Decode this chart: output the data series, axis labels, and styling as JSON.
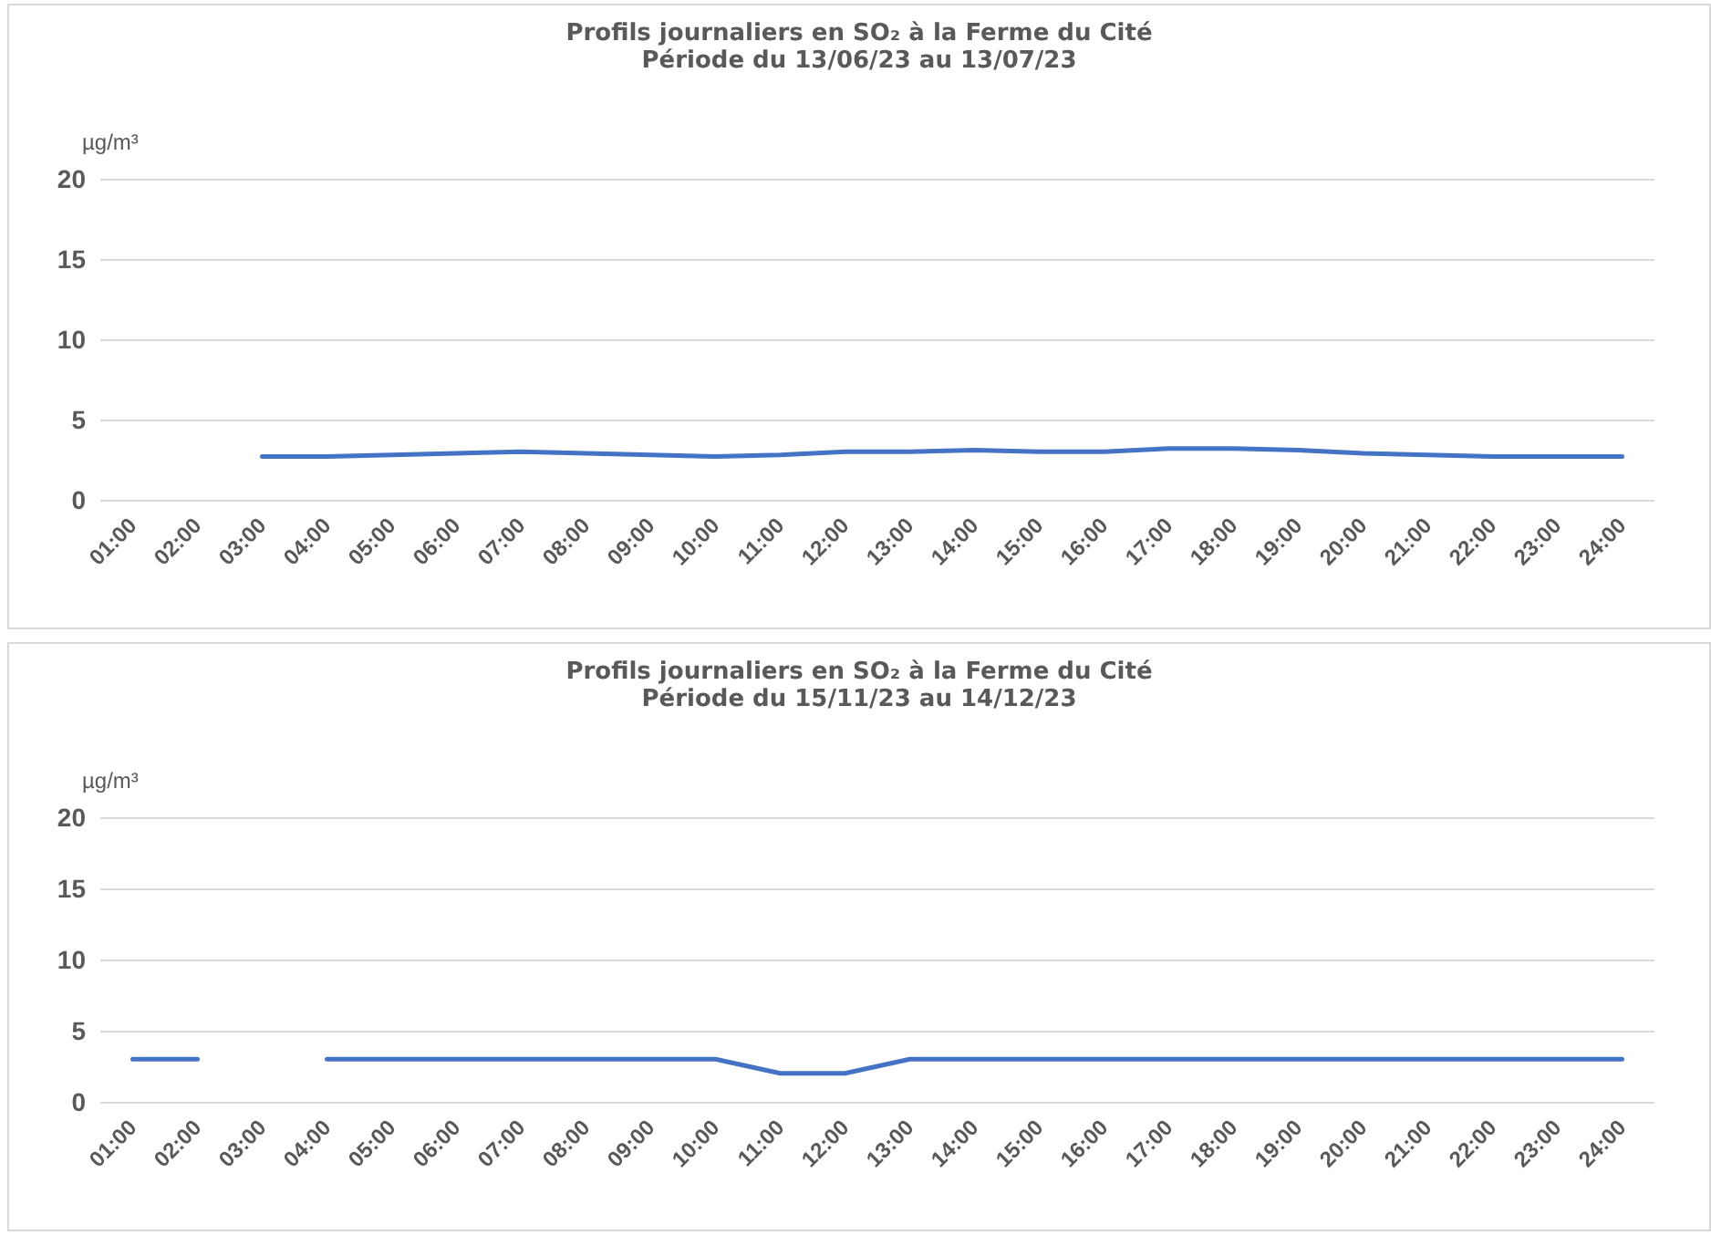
{
  "chart_data": [
    {
      "type": "line",
      "title": "Profils journaliers en SO₂ à la Ferme du Cité",
      "subtitle": "Période du 13/06/23 au 13/07/23",
      "ylabel": "µg/m³",
      "categories": [
        "01:00",
        "02:00",
        "03:00",
        "04:00",
        "05:00",
        "06:00",
        "07:00",
        "08:00",
        "09:00",
        "10:00",
        "11:00",
        "12:00",
        "13:00",
        "14:00",
        "15:00",
        "16:00",
        "17:00",
        "18:00",
        "19:00",
        "20:00",
        "21:00",
        "22:00",
        "23:00",
        "24:00"
      ],
      "series": [
        {
          "color": "#4472c4",
          "values": [
            null,
            null,
            2.7,
            2.7,
            2.8,
            2.9,
            3.0,
            2.9,
            2.8,
            2.7,
            2.8,
            3.0,
            3.0,
            3.1,
            3.0,
            3.0,
            3.2,
            3.2,
            3.1,
            2.9,
            2.8,
            2.7,
            2.7,
            2.7
          ]
        }
      ],
      "ylim": [
        0,
        20
      ],
      "yticks": [
        0,
        5,
        10,
        15,
        20
      ],
      "grid": "y",
      "marker": "none",
      "line_style": "solid"
    },
    {
      "type": "line",
      "title": "Profils journaliers en SO₂ à la Ferme du Cité",
      "subtitle": "Période du 15/11/23 au 14/12/23",
      "ylabel": "µg/m³",
      "categories": [
        "01:00",
        "02:00",
        "03:00",
        "04:00",
        "05:00",
        "06:00",
        "07:00",
        "08:00",
        "09:00",
        "10:00",
        "11:00",
        "12:00",
        "13:00",
        "14:00",
        "15:00",
        "16:00",
        "17:00",
        "18:00",
        "19:00",
        "20:00",
        "21:00",
        "22:00",
        "23:00",
        "24:00"
      ],
      "series": [
        {
          "color": "#4472c4",
          "values": [
            3,
            3,
            null,
            3,
            3,
            3,
            3,
            3,
            3,
            3,
            2,
            2,
            3,
            3,
            3,
            3,
            3,
            3,
            3,
            3,
            3,
            3,
            3,
            3
          ]
        }
      ],
      "ylim": [
        0,
        20
      ],
      "yticks": [
        0,
        5,
        10,
        15,
        20
      ],
      "grid": "y",
      "marker": "none",
      "line_style": "solid"
    }
  ]
}
